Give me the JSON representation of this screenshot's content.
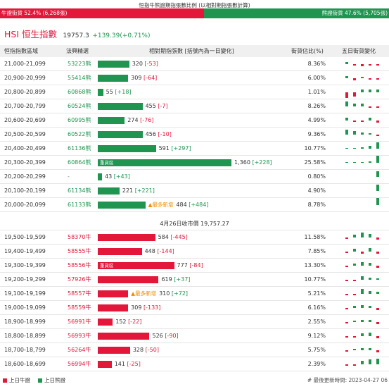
{
  "header": {
    "caption": "恒指牛熊證期指張數比例 (以相對期指張數計算)",
    "bull_label": "牛證街貨 52.4% (6,268張)",
    "bear_label": "熊證街貨 47.6% (5,705張)",
    "bull_ratio": 0.524
  },
  "index": {
    "name": "HSI 恒生指數",
    "price": "19757.3",
    "change": "+139.39(+0.71%)"
  },
  "table": {
    "columns": {
      "range": "恒指指數區域",
      "code": "法興精選",
      "contracts": "相對期指張數 [括號內為一日變化]",
      "pct": "街貨佔比(%)",
      "trend": "五日街貨變化"
    },
    "max_contracts": 1360,
    "bear_rows": [
      {
        "range": "21,000-21,099",
        "code": "53223熊",
        "contracts": 320,
        "contracts_text": "320",
        "change": "[-53]",
        "pct": "8.36%",
        "trend": [
          3,
          -2,
          -3,
          -2,
          -2
        ]
      },
      {
        "range": "20,900-20,999",
        "code": "55414熊",
        "contracts": 309,
        "contracts_text": "309",
        "change": "[-64]",
        "pct": "6.00%",
        "trend": [
          3,
          -3,
          2,
          -2,
          -2
        ]
      },
      {
        "range": "20,800-20,899",
        "code": "60868熊",
        "contracts": 55,
        "contracts_text": "55",
        "change": "[+18]",
        "pct": "1.01%",
        "trend": [
          -7,
          -5,
          4,
          4,
          4
        ]
      },
      {
        "range": "20,700-20,799",
        "code": "60524熊",
        "contracts": 455,
        "contracts_text": "455",
        "change": "[-7]",
        "pct": "8.26%",
        "trend": [
          6,
          4,
          4,
          -2,
          -2
        ]
      },
      {
        "range": "20,600-20,699",
        "code": "60995熊",
        "contracts": 274,
        "contracts_text": "274",
        "change": "[-76]",
        "pct": "4.99%",
        "trend": [
          4,
          -2,
          -2,
          4,
          -3
        ]
      },
      {
        "range": "20,500-20,599",
        "code": "60522熊",
        "contracts": 456,
        "contracts_text": "456",
        "change": "[-10]",
        "pct": "9.36%",
        "trend": [
          6,
          5,
          3,
          2,
          -2
        ]
      },
      {
        "range": "20,400-20,499",
        "code": "61136熊",
        "contracts": 591,
        "contracts_text": "591",
        "change": "[+297]",
        "pct": "10.77%",
        "trend": [
          1,
          1,
          2,
          4,
          8
        ]
      },
      {
        "range": "20,300-20,399",
        "code": "60864熊",
        "contracts": 1360,
        "contracts_text": "1,360",
        "change": "[+228]",
        "pct": "25.58%",
        "trend": [
          1,
          1,
          1,
          2,
          9
        ],
        "tag": "重貨區"
      },
      {
        "range": "20,200-20,299",
        "code": "-",
        "contracts": 43,
        "contracts_text": "43",
        "change": "[+43]",
        "pct": "0.80%",
        "trend": [
          0,
          0,
          0,
          0,
          7
        ]
      },
      {
        "range": "20,100-20,199",
        "code": "61134熊",
        "contracts": 221,
        "contracts_text": "221",
        "change": "[+221]",
        "pct": "4.90%",
        "trend": [
          0,
          0,
          0,
          0,
          8
        ]
      },
      {
        "range": "20,000-20,099",
        "code": "61133熊",
        "contracts": 484,
        "contracts_text": "484",
        "change": "[+484]",
        "pct": "8.78%",
        "trend": [
          0,
          0,
          0,
          0,
          9
        ],
        "new_tag": "▲最多新增"
      }
    ],
    "separator": "4月26日收市價 19,757.27",
    "bull_rows": [
      {
        "range": "19,500-19,599",
        "code": "58370牛",
        "contracts": 584,
        "contracts_text": "584",
        "change": "[-445]",
        "pct": "11.58%",
        "trend": [
          -2,
          4,
          6,
          5,
          -3
        ]
      },
      {
        "range": "19,400-19,499",
        "code": "58555牛",
        "contracts": 448,
        "contracts_text": "448",
        "change": "[-144]",
        "pct": "7.85%",
        "trend": [
          -2,
          4,
          -3,
          5,
          -3
        ]
      },
      {
        "range": "19,300-19,399",
        "code": "58556牛",
        "contracts": 777,
        "contracts_text": "777",
        "change": "[-84]",
        "pct": "13.30%",
        "trend": [
          -2,
          3,
          5,
          4,
          -3
        ],
        "tag": "重貨區"
      },
      {
        "range": "19,200-19,299",
        "code": "57926牛",
        "contracts": 619,
        "contracts_text": "619",
        "change": "[+37]",
        "pct": "10.77%",
        "trend": [
          -2,
          -2,
          5,
          3,
          2
        ]
      },
      {
        "range": "19,100-19,199",
        "code": "58557牛",
        "contracts": 310,
        "contracts_text": "310",
        "change": "[+72]",
        "pct": "5.21%",
        "trend": [
          -2,
          -2,
          6,
          4,
          3
        ],
        "new_tag": "▲最多新增"
      },
      {
        "range": "19,000-19,099",
        "code": "58559牛",
        "contracts": 309,
        "contracts_text": "309",
        "change": "[-133]",
        "pct": "6.16%",
        "trend": [
          -2,
          3,
          4,
          3,
          -3
        ]
      },
      {
        "range": "18,900-18,999",
        "code": "56991牛",
        "contracts": 152,
        "contracts_text": "152",
        "change": "[-22]",
        "pct": "2.55%",
        "trend": [
          -2,
          2,
          3,
          3,
          -3
        ]
      },
      {
        "range": "18,800-18,899",
        "code": "56993牛",
        "contracts": 526,
        "contracts_text": "526",
        "change": "[-90]",
        "pct": "9.12%",
        "trend": [
          -2,
          -2,
          4,
          5,
          -3
        ]
      },
      {
        "range": "18,700-18,799",
        "code": "56264牛",
        "contracts": 328,
        "contracts_text": "328",
        "change": "[-50]",
        "pct": "5.75%",
        "trend": [
          -2,
          2,
          3,
          3,
          -3
        ]
      },
      {
        "range": "18,600-18,699",
        "code": "56994牛",
        "contracts": 141,
        "contracts_text": "141",
        "change": "[-25]",
        "pct": "2.39%",
        "trend": [
          -2,
          -2,
          5,
          6,
          7
        ]
      }
    ]
  },
  "footer": {
    "legend_bull": "上日牛證",
    "legend_bear": "上日熊證",
    "update_time": "# 最後更新時間: 2023-04-27 06"
  },
  "colors": {
    "bull": "#e2173a",
    "bear": "#1f9550",
    "new": "#f08a00"
  }
}
